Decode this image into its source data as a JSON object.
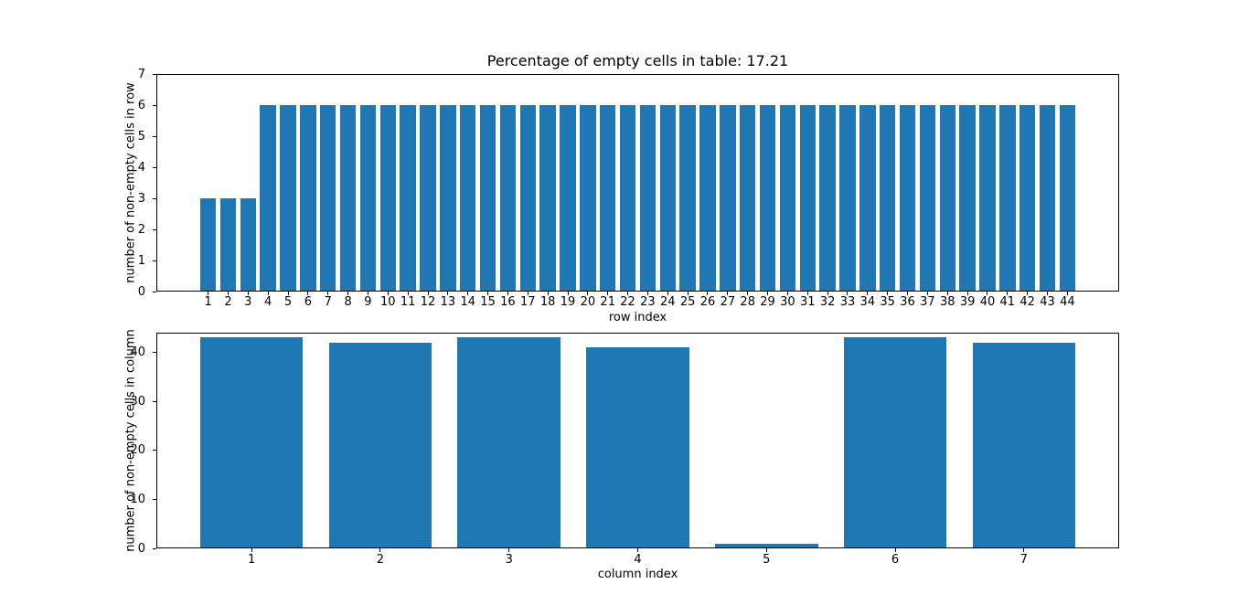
{
  "figure": {
    "background": "#ffffff"
  },
  "colors": {
    "bar": "#1f77b4",
    "axis": "#000000",
    "text": "#000000"
  },
  "chart_data": [
    {
      "type": "bar",
      "title": "Percentage of empty cells in table: 17.21",
      "xlabel": "row index",
      "ylabel": "number of non-empty cells in row",
      "categories": [
        1,
        2,
        3,
        4,
        5,
        6,
        7,
        8,
        9,
        10,
        11,
        12,
        13,
        14,
        15,
        16,
        17,
        18,
        19,
        20,
        21,
        22,
        23,
        24,
        25,
        26,
        27,
        28,
        29,
        30,
        31,
        32,
        33,
        34,
        35,
        36,
        37,
        38,
        39,
        40,
        41,
        42,
        43,
        44
      ],
      "values": [
        3,
        3,
        3,
        6,
        6,
        6,
        6,
        6,
        6,
        6,
        6,
        6,
        6,
        6,
        6,
        6,
        6,
        6,
        6,
        6,
        6,
        6,
        6,
        6,
        6,
        6,
        6,
        6,
        6,
        6,
        6,
        6,
        6,
        6,
        6,
        6,
        6,
        6,
        6,
        6,
        6,
        6,
        6,
        6
      ],
      "ylim": [
        0,
        7
      ],
      "yticks": [
        0,
        1,
        2,
        3,
        4,
        5,
        6,
        7
      ],
      "xlim": [
        -1.59,
        46.59
      ],
      "bar_width": 0.8,
      "grid": false,
      "legend": null
    },
    {
      "type": "bar",
      "title": "",
      "xlabel": "column index",
      "ylabel": "number of non-empty cells in column",
      "categories": [
        1,
        2,
        3,
        4,
        5,
        6,
        7
      ],
      "values": [
        43,
        42,
        43,
        41,
        1,
        43,
        42
      ],
      "ylim": [
        0,
        44
      ],
      "yticks": [
        0,
        10,
        20,
        30,
        40
      ],
      "xlim": [
        0.26,
        7.74
      ],
      "bar_width": 0.8,
      "grid": false,
      "legend": null
    }
  ]
}
